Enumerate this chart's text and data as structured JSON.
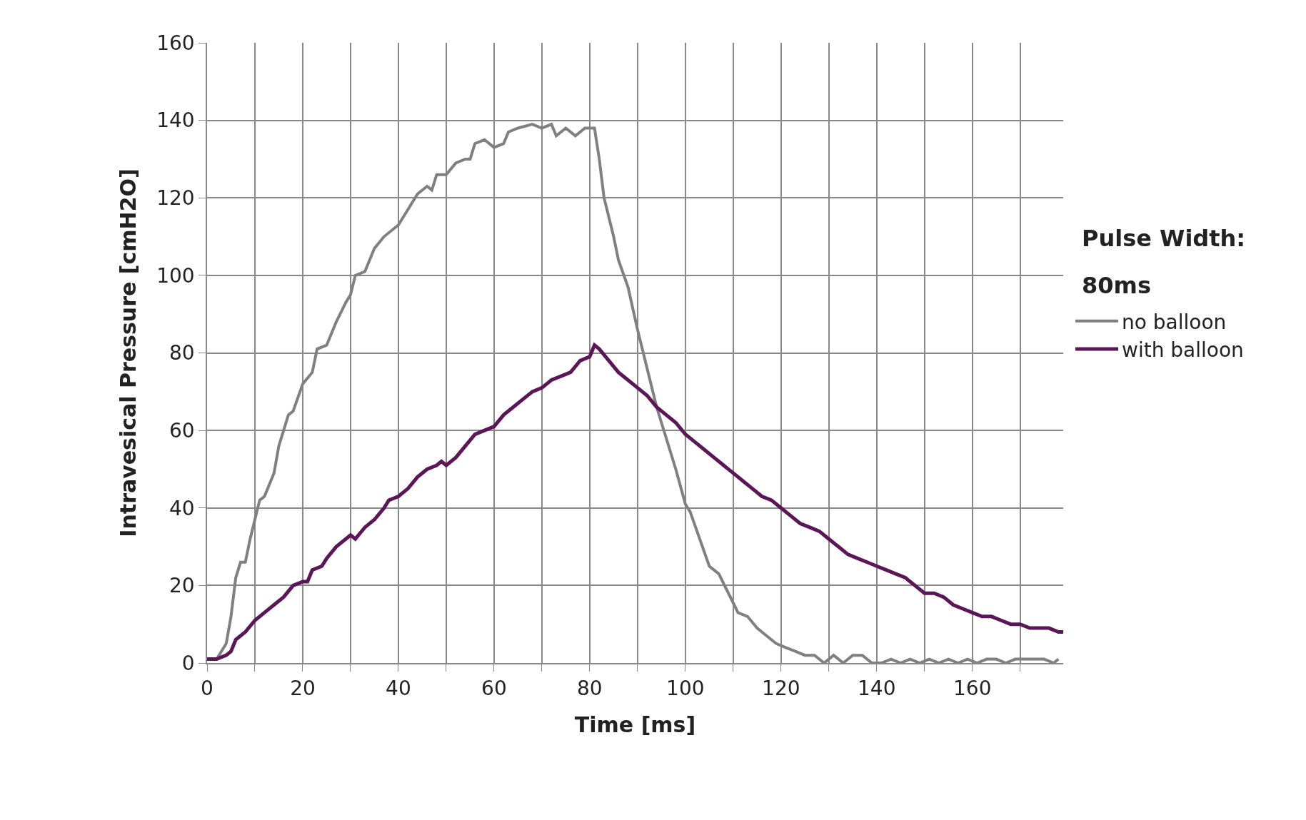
{
  "chart_data": {
    "type": "line",
    "xlabel": "Time [ms]",
    "ylabel": "Intravesical Pressure [cmH2O]",
    "legend_title": "Pulse Width:",
    "annotations": [
      "80ms"
    ],
    "legend": "right",
    "grid": true,
    "marker": "none",
    "line_style": "solid",
    "xlim": [
      0,
      179
    ],
    "xticks": [
      0,
      {
        "value": 10,
        "label": null
      },
      20,
      {
        "value": 30,
        "label": null
      },
      40,
      {
        "value": 50,
        "label": null
      },
      60,
      {
        "value": 70,
        "label": null
      },
      80,
      {
        "value": 90,
        "label": null
      },
      100,
      {
        "value": 110,
        "label": null
      },
      120,
      {
        "value": 130,
        "label": null
      },
      140,
      {
        "value": 150,
        "label": null
      },
      160,
      {
        "value": 170,
        "label": null
      }
    ],
    "ylim": [
      0,
      160
    ],
    "yticks": [
      0,
      20,
      40,
      60,
      80,
      100,
      120,
      140,
      160
    ],
    "series": [
      {
        "name": "no balloon",
        "color": "#808080",
        "x": [
          0,
          2,
          4,
          5,
          6,
          7,
          8,
          9,
          10,
          11,
          12,
          14,
          15,
          17,
          18,
          20,
          22,
          23,
          25,
          27,
          29,
          30,
          31,
          33,
          35,
          37,
          40,
          42,
          44,
          46,
          47,
          48,
          50,
          52,
          54,
          55,
          56,
          58,
          60,
          62,
          63,
          65,
          68,
          70,
          72,
          73,
          75,
          77,
          79,
          81,
          82,
          83,
          85,
          86,
          88,
          90,
          92,
          94,
          96,
          98,
          100,
          101,
          103,
          105,
          107,
          109,
          111,
          113,
          115,
          117,
          119,
          121,
          123,
          125,
          127,
          129,
          131,
          133,
          135,
          137,
          139,
          141,
          143,
          145,
          147,
          149,
          151,
          153,
          155,
          157,
          159,
          161,
          163,
          165,
          167,
          169,
          171,
          173,
          175,
          177,
          178
        ],
        "values": [
          1,
          1,
          5,
          12,
          22,
          26,
          26,
          32,
          37,
          42,
          43,
          49,
          56,
          64,
          65,
          72,
          75,
          81,
          82,
          88,
          93,
          95,
          100,
          101,
          107,
          110,
          113,
          117,
          121,
          123,
          122,
          126,
          126,
          129,
          130,
          130,
          134,
          135,
          133,
          134,
          137,
          138,
          139,
          138,
          139,
          136,
          138,
          136,
          138,
          138,
          130,
          120,
          110,
          104,
          97,
          86,
          76,
          66,
          58,
          50,
          41,
          39,
          32,
          25,
          23,
          18,
          13,
          12,
          9,
          7,
          5,
          4,
          3,
          2,
          2,
          0,
          2,
          0,
          2,
          2,
          0,
          0,
          1,
          0,
          1,
          0,
          1,
          0,
          1,
          0,
          1,
          0,
          1,
          1,
          0,
          1,
          1,
          1,
          1,
          0,
          1
        ]
      },
      {
        "name": "with balloon",
        "color": "#5b1657",
        "x": [
          0,
          2,
          4,
          5,
          6,
          8,
          10,
          12,
          14,
          16,
          18,
          20,
          21,
          22,
          24,
          25,
          27,
          29,
          30,
          31,
          33,
          35,
          37,
          38,
          40,
          42,
          44,
          46,
          48,
          49,
          50,
          52,
          54,
          56,
          58,
          60,
          62,
          64,
          66,
          68,
          70,
          72,
          74,
          76,
          78,
          80,
          81,
          82,
          84,
          86,
          88,
          90,
          92,
          94,
          96,
          98,
          100,
          102,
          104,
          106,
          108,
          110,
          112,
          114,
          116,
          118,
          120,
          122,
          124,
          126,
          128,
          130,
          132,
          134,
          136,
          138,
          140,
          142,
          144,
          146,
          148,
          150,
          152,
          154,
          156,
          158,
          160,
          162,
          164,
          166,
          168,
          170,
          172,
          174,
          176,
          178,
          179
        ],
        "values": [
          1,
          1,
          2,
          3,
          6,
          8,
          11,
          13,
          15,
          17,
          20,
          21,
          21,
          24,
          25,
          27,
          30,
          32,
          33,
          32,
          35,
          37,
          40,
          42,
          43,
          45,
          48,
          50,
          51,
          52,
          51,
          53,
          56,
          59,
          60,
          61,
          64,
          66,
          68,
          70,
          71,
          73,
          74,
          75,
          78,
          79,
          82,
          81,
          78,
          75,
          73,
          71,
          69,
          66,
          64,
          62,
          59,
          57,
          55,
          53,
          51,
          49,
          47,
          45,
          43,
          42,
          40,
          38,
          36,
          35,
          34,
          32,
          30,
          28,
          27,
          26,
          25,
          24,
          23,
          22,
          20,
          18,
          18,
          17,
          15,
          14,
          13,
          12,
          12,
          11,
          10,
          10,
          9,
          9,
          9,
          8,
          8
        ]
      }
    ]
  }
}
